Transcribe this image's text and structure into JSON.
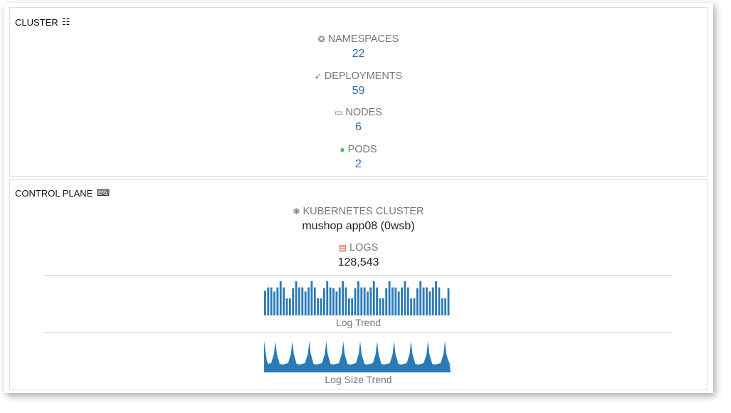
{
  "cluster": {
    "title": "CLUSTER",
    "icon": "sitemap-icon",
    "stats": [
      {
        "label": "NAMESPACES",
        "value": "22",
        "icon": "cog-cluster-icon"
      },
      {
        "label": "DEPLOYMENTS",
        "value": "59",
        "icon": "rocket-icon"
      },
      {
        "label": "NODES",
        "value": "6",
        "icon": "laptop-icon"
      },
      {
        "label": "PODS",
        "value": "2",
        "icon": "check-circle-icon",
        "icon_color": "#2ecc40"
      }
    ]
  },
  "control_plane": {
    "title": "CONTROL PLANE",
    "icon": "gamepad-icon",
    "cluster_label": "KUBERNETES CLUSTER",
    "cluster_value": "mushop app08 (0wsb)",
    "logs_label": "LOGS",
    "logs_value": "128,543",
    "logs_icon_color": "#d9534f",
    "log_trend": {
      "caption": "Log Trend",
      "values": [
        0.72,
        0.82,
        0.82,
        0.7,
        0.82,
        1,
        0.82,
        0.5,
        0.5,
        0.8,
        1,
        0.82,
        0.82,
        0.7,
        0.82,
        1,
        0.82,
        0.5,
        0.5,
        0.8,
        1,
        0.82,
        0.8,
        0.7,
        0.82,
        1,
        0.82,
        0.5,
        0.5,
        0.8,
        1,
        0.82,
        0.82,
        0.7,
        0.82,
        1,
        0.82,
        0.5,
        0.5,
        0.8,
        1,
        0.82,
        0.82,
        0.7,
        0.82,
        1,
        0.82,
        0.5,
        0.5,
        0.8,
        1,
        0.82,
        0.82,
        0.7,
        0.82,
        1,
        0.82,
        0.5,
        0.5,
        0.8
      ]
    },
    "log_size_trend": {
      "caption": "Log Size Trend",
      "peaks": 11
    }
  },
  "colors": {
    "accent": "#2a7ab8",
    "value": "#2a6fa8"
  }
}
